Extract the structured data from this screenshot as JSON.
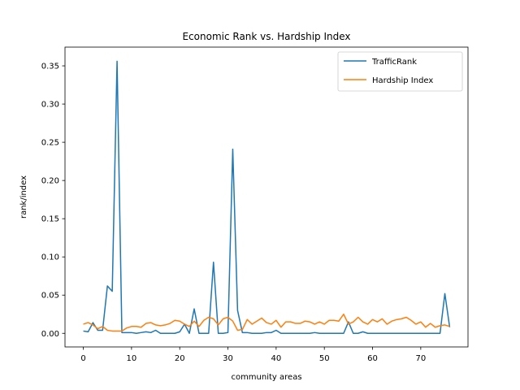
{
  "chart_data": {
    "type": "line",
    "title": "Economic Rank vs. Hardship Index",
    "xlabel": "community areas",
    "ylabel": "rank/index",
    "xlim": [
      -3.8,
      79.8
    ],
    "ylim": [
      -0.0178,
      0.3745
    ],
    "xticks": [
      0,
      10,
      20,
      30,
      40,
      50,
      60,
      70
    ],
    "xtick_labels": [
      "0",
      "10",
      "20",
      "30",
      "40",
      "50",
      "60",
      "70"
    ],
    "yticks": [
      0.0,
      0.05,
      0.1,
      0.15,
      0.2,
      0.25,
      0.3,
      0.35
    ],
    "ytick_labels": [
      "0.00",
      "0.05",
      "0.10",
      "0.15",
      "0.20",
      "0.25",
      "0.30",
      "0.35"
    ],
    "grid": false,
    "legend_position": "top-right",
    "x": [
      0,
      1,
      2,
      3,
      4,
      5,
      6,
      7,
      8,
      9,
      10,
      11,
      12,
      13,
      14,
      15,
      16,
      17,
      18,
      19,
      20,
      21,
      22,
      23,
      24,
      25,
      26,
      27,
      28,
      29,
      30,
      31,
      32,
      33,
      34,
      35,
      36,
      37,
      38,
      39,
      40,
      41,
      42,
      43,
      44,
      45,
      46,
      47,
      48,
      49,
      50,
      51,
      52,
      53,
      54,
      55,
      56,
      57,
      58,
      59,
      60,
      61,
      62,
      63,
      64,
      65,
      66,
      67,
      68,
      69,
      70,
      71,
      72,
      73,
      74,
      75,
      76
    ],
    "series": [
      {
        "name": "TrafficRank",
        "color": "#1f77b4",
        "values": [
          0.003,
          0.002,
          0.014,
          0.004,
          0.004,
          0.062,
          0.055,
          0.356,
          0.001,
          0.001,
          0.001,
          0.0,
          0.001,
          0.002,
          0.001,
          0.004,
          0.0,
          0.0,
          0.0,
          0.0,
          0.002,
          0.012,
          0.0,
          0.032,
          0.0,
          0.0,
          0.0,
          0.093,
          0.0,
          0.0,
          0.001,
          0.241,
          0.03,
          0.001,
          0.001,
          0.0,
          0.0,
          0.0,
          0.001,
          0.001,
          0.004,
          0.0,
          0.0,
          0.0,
          0.0,
          0.0,
          0.0,
          0.0,
          0.001,
          0.0,
          0.0,
          0.0,
          0.0,
          0.0,
          0.0,
          0.015,
          0.0,
          0.0,
          0.002,
          0.0,
          0.0,
          0.0,
          0.0,
          0.0,
          0.0,
          0.0,
          0.0,
          0.0,
          0.0,
          0.0,
          0.0,
          0.0,
          0.0,
          0.0,
          0.0,
          0.052,
          0.008
        ]
      },
      {
        "name": "Hardship Index",
        "color": "#ff7f0e",
        "values": [
          0.012,
          0.014,
          0.011,
          0.006,
          0.009,
          0.004,
          0.003,
          0.003,
          0.003,
          0.007,
          0.009,
          0.009,
          0.008,
          0.013,
          0.014,
          0.011,
          0.01,
          0.011,
          0.013,
          0.017,
          0.016,
          0.012,
          0.009,
          0.016,
          0.009,
          0.017,
          0.021,
          0.019,
          0.011,
          0.019,
          0.021,
          0.016,
          0.004,
          0.005,
          0.018,
          0.012,
          0.016,
          0.02,
          0.014,
          0.012,
          0.017,
          0.008,
          0.015,
          0.015,
          0.013,
          0.013,
          0.016,
          0.015,
          0.012,
          0.015,
          0.012,
          0.017,
          0.017,
          0.016,
          0.025,
          0.012,
          0.015,
          0.021,
          0.015,
          0.012,
          0.018,
          0.015,
          0.019,
          0.012,
          0.016,
          0.018,
          0.019,
          0.021,
          0.017,
          0.012,
          0.015,
          0.008,
          0.013,
          0.008,
          0.01,
          0.011,
          0.009
        ]
      }
    ]
  }
}
